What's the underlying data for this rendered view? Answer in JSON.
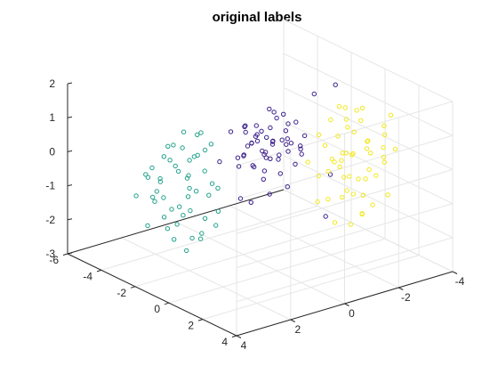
{
  "chart_data": {
    "type": "scatter",
    "title": "original labels",
    "xlabel": "",
    "ylabel": "",
    "zlabel": "",
    "grid": true,
    "view": "3d",
    "xlim": [
      -6,
      4
    ],
    "ylim": [
      -4,
      4
    ],
    "zlim": [
      -3,
      2
    ],
    "xticks": [
      -6,
      -4,
      -2,
      0,
      2,
      4
    ],
    "yticks": [
      -4,
      -2,
      0,
      2,
      4
    ],
    "zticks": [
      -3,
      -2,
      -1,
      0,
      1,
      2
    ],
    "marker": "open-circle",
    "series": [
      {
        "color": "#3b1f8a",
        "points": [
          [
            -1.2,
            -0.5,
            0.8
          ],
          [
            -0.6,
            -0.9,
            0.4
          ],
          [
            -0.9,
            0.2,
            1.1
          ],
          [
            -0.3,
            -0.6,
            0.3
          ],
          [
            -1.5,
            -0.2,
            0.6
          ],
          [
            -0.8,
            -1.2,
            0.9
          ],
          [
            -0.4,
            0.0,
            0.2
          ],
          [
            -1.1,
            0.4,
            0.5
          ],
          [
            -0.5,
            -0.3,
            1.3
          ],
          [
            -1.8,
            0.1,
            0.0
          ],
          [
            -0.2,
            -0.8,
            -0.1
          ],
          [
            -1.0,
            -0.7,
            0.0
          ],
          [
            -0.7,
            0.5,
            0.7
          ],
          [
            -1.3,
            -1.0,
            0.3
          ],
          [
            -0.1,
            -0.4,
            0.6
          ],
          [
            -1.6,
            -0.6,
            -0.2
          ],
          [
            -0.9,
            -0.1,
            -0.3
          ],
          [
            -0.4,
            0.6,
            0.1
          ],
          [
            -1.4,
            0.3,
            1.0
          ],
          [
            -0.6,
            -1.4,
            0.5
          ],
          [
            -1.9,
            -0.4,
            0.4
          ],
          [
            -0.3,
            0.2,
            0.9
          ],
          [
            -1.1,
            -1.1,
            0.8
          ],
          [
            -0.8,
            0.0,
            -0.5
          ],
          [
            -1.2,
            0.7,
            0.2
          ],
          [
            -0.5,
            -0.2,
            1.5
          ],
          [
            -1.7,
            -0.9,
            0.1
          ],
          [
            -0.2,
            -1.0,
            0.3
          ],
          [
            -1.0,
            0.1,
            0.6
          ],
          [
            -0.6,
            -0.5,
            -0.4
          ],
          [
            -1.4,
            -0.3,
            0.7
          ],
          [
            -0.9,
            -0.8,
            1.2
          ],
          [
            -0.4,
            0.3,
            0.5
          ],
          [
            -1.3,
            0.6,
            -0.1
          ],
          [
            -0.7,
            -1.3,
            0.2
          ],
          [
            -1.5,
            0.0,
            0.4
          ],
          [
            -0.1,
            0.1,
            0.8
          ],
          [
            -1.1,
            -0.4,
            1.4
          ],
          [
            -0.8,
            0.4,
            0.0
          ],
          [
            -0.5,
            -0.7,
            0.6
          ],
          [
            -1.6,
            0.2,
            0.9
          ],
          [
            -0.3,
            -1.1,
            0.1
          ],
          [
            -1.0,
            -0.2,
            0.2
          ],
          [
            -0.7,
            0.8,
            0.4
          ],
          [
            -1.2,
            -0.8,
            -0.2
          ],
          [
            -0.4,
            -0.1,
            0.7
          ],
          [
            -0.9,
            0.6,
            1.0
          ],
          [
            -1.4,
            -1.2,
            0.5
          ],
          [
            -0.6,
            0.1,
            0.3
          ],
          [
            0.2,
            0.4,
            -0.6
          ],
          [
            0.4,
            1.6,
            -0.4
          ],
          [
            0.3,
            -0.2,
            -0.5
          ],
          [
            -0.1,
            0.9,
            -0.8
          ],
          [
            0.1,
            -2.1,
            2.0
          ],
          [
            1.6,
            -0.8,
            -1.2
          ],
          [
            0.6,
            -1.6,
            -0.4
          ],
          [
            -0.5,
            1.4,
            1.3
          ],
          [
            -2.6,
            0.5,
            -0.3
          ],
          [
            -0.2,
            -1.5,
            1.8
          ]
        ]
      },
      {
        "color": "#21a28a",
        "points": [
          [
            -3.2,
            1.5,
            0.2
          ],
          [
            -2.8,
            1.9,
            -0.3
          ],
          [
            -3.6,
            1.2,
            0.5
          ],
          [
            -2.5,
            2.2,
            0.0
          ],
          [
            -3.0,
            0.8,
            -0.6
          ],
          [
            -3.9,
            1.6,
            0.1
          ],
          [
            -2.7,
            1.3,
            -1.0
          ],
          [
            -3.4,
            2.5,
            -0.2
          ],
          [
            -2.9,
            1.0,
            0.6
          ],
          [
            -3.7,
            2.0,
            -0.8
          ],
          [
            -2.6,
            1.7,
            -0.5
          ],
          [
            -3.3,
            0.6,
            -0.1
          ],
          [
            -4.1,
            1.4,
            -0.4
          ],
          [
            -2.4,
            2.4,
            -1.2
          ],
          [
            -3.1,
            1.9,
            0.4
          ],
          [
            -3.8,
            0.9,
            -0.9
          ],
          [
            -2.8,
            2.7,
            -0.7
          ],
          [
            -3.5,
            1.1,
            -1.4
          ],
          [
            -2.3,
            1.5,
            0.2
          ],
          [
            -3.0,
            2.3,
            -1.6
          ],
          [
            -3.6,
            0.7,
            0.3
          ],
          [
            -2.7,
            0.5,
            -1.1
          ],
          [
            -3.3,
            2.8,
            -0.3
          ],
          [
            -4.0,
            2.1,
            -1.3
          ],
          [
            -2.5,
            1.1,
            -1.8
          ],
          [
            -3.2,
            1.7,
            -2.0
          ],
          [
            -3.7,
            1.3,
            -1.7
          ],
          [
            -2.9,
            2.0,
            -2.3
          ],
          [
            -3.4,
            0.4,
            -1.5
          ],
          [
            -2.6,
            2.9,
            -0.9
          ],
          [
            -3.9,
            0.8,
            -0.5
          ],
          [
            -3.1,
            1.2,
            -2.5
          ],
          [
            -2.4,
            0.9,
            -0.8
          ],
          [
            -3.5,
            2.6,
            -1.9
          ],
          [
            -2.8,
            1.6,
            -2.7
          ],
          [
            -3.6,
            1.8,
            -2.2
          ],
          [
            -2.2,
            2.1,
            -1.4
          ],
          [
            -3.3,
            1.0,
            -0.2
          ],
          [
            -4.2,
            1.7,
            -0.9
          ],
          [
            -2.7,
            2.5,
            0.3
          ],
          [
            -3.0,
            0.3,
            -1.9
          ],
          [
            -3.8,
            2.4,
            -0.6
          ],
          [
            -2.5,
            0.7,
            -2.1
          ],
          [
            -3.2,
            2.2,
            -1.1
          ],
          [
            -2.9,
            1.4,
            -1.6
          ],
          [
            -3.5,
            0.6,
            -2.6
          ],
          [
            -2.3,
            1.8,
            -0.7
          ],
          [
            -3.7,
            2.9,
            -1.0
          ],
          [
            -3.1,
            0.5,
            0.1
          ],
          [
            -2.6,
            1.2,
            -2.4
          ]
        ]
      },
      {
        "color": "#f2e81a",
        "points": [
          [
            1.2,
            -1.5,
            0.9
          ],
          [
            1.8,
            -1.0,
            0.4
          ],
          [
            0.9,
            -2.0,
            1.2
          ],
          [
            2.2,
            -1.3,
            0.0
          ],
          [
            1.5,
            -2.4,
            0.6
          ],
          [
            0.7,
            -1.1,
            -0.3
          ],
          [
            2.5,
            -1.8,
            1.0
          ],
          [
            1.0,
            -2.7,
            0.2
          ],
          [
            1.9,
            -0.7,
            -0.6
          ],
          [
            2.8,
            -2.2,
            0.5
          ],
          [
            1.3,
            -1.6,
            -0.9
          ],
          [
            0.5,
            -2.3,
            0.8
          ],
          [
            2.1,
            -2.9,
            1.4
          ],
          [
            1.6,
            -0.9,
            0.1
          ],
          [
            2.6,
            -1.2,
            -0.4
          ],
          [
            0.8,
            -1.8,
            1.6
          ],
          [
            1.4,
            -3.1,
            -0.2
          ],
          [
            2.3,
            -0.6,
            0.7
          ],
          [
            1.1,
            -2.5,
            -1.1
          ],
          [
            2.9,
            -1.6,
            0.3
          ],
          [
            1.7,
            -2.1,
            1.7
          ],
          [
            0.6,
            -1.4,
            0.5
          ],
          [
            2.4,
            -2.6,
            -0.8
          ],
          [
            1.2,
            -0.8,
            1.1
          ],
          [
            2.0,
            -1.9,
            -1.3
          ],
          [
            3.1,
            -2.0,
            0.9
          ],
          [
            0.9,
            -2.9,
            0.0
          ],
          [
            1.8,
            -1.4,
            1.9
          ],
          [
            2.7,
            -0.9,
            -0.2
          ],
          [
            1.3,
            -2.2,
            -0.5
          ],
          [
            2.2,
            -3.0,
            0.4
          ],
          [
            0.7,
            -0.7,
            0.2
          ],
          [
            1.5,
            -1.2,
            -1.5
          ],
          [
            2.5,
            -2.4,
            1.3
          ],
          [
            1.0,
            -1.7,
            -0.1
          ],
          [
            1.9,
            -2.8,
            0.8
          ],
          [
            2.8,
            -1.1,
            1.5
          ],
          [
            1.6,
            -0.5,
            -0.7
          ],
          [
            2.1,
            -1.5,
            0.6
          ],
          [
            0.8,
            -2.6,
            1.0
          ],
          [
            1.4,
            -1.9,
            0.3
          ],
          [
            2.3,
            -2.1,
            -1.0
          ],
          [
            3.0,
            -1.4,
            0.1
          ],
          [
            1.1,
            -1.3,
            1.4
          ],
          [
            1.7,
            -2.6,
            -0.4
          ],
          [
            2.6,
            -0.8,
            0.9
          ],
          [
            0.6,
            -2.1,
            -0.6
          ],
          [
            2.0,
            -1.7,
            1.8
          ],
          [
            0.3,
            -2.2,
            -0.2
          ],
          [
            0.1,
            -2.5,
            -0.1
          ],
          [
            0.4,
            -2.9,
            -1.9
          ],
          [
            0.2,
            -2.6,
            -2.2
          ]
        ]
      }
    ]
  }
}
